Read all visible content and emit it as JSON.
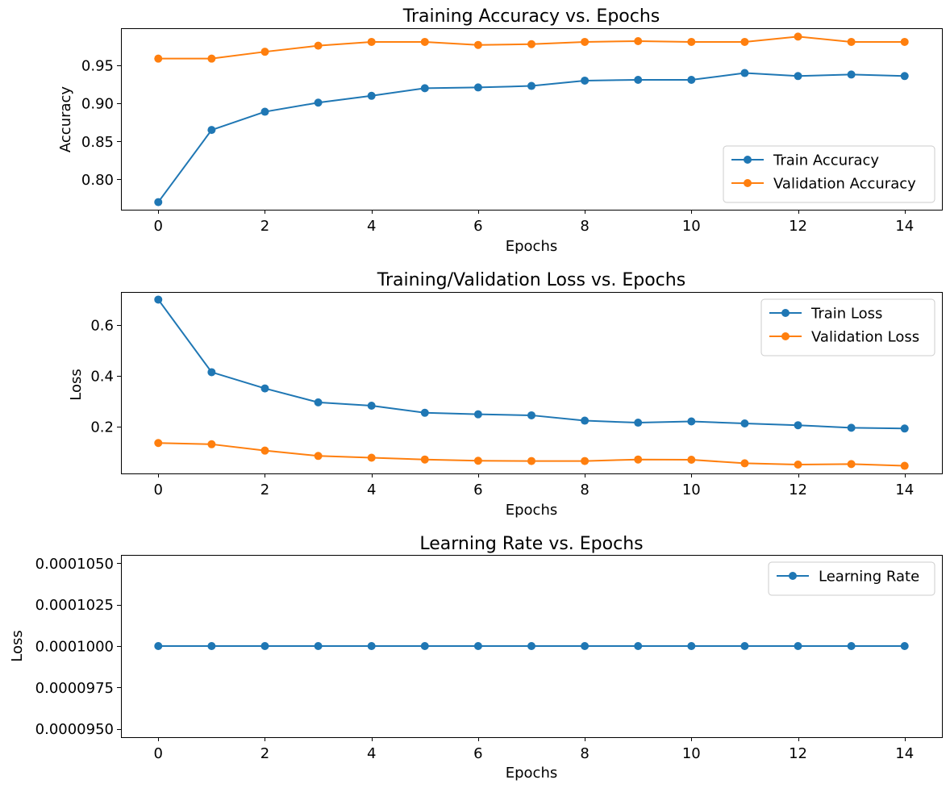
{
  "chart_data": [
    {
      "type": "line",
      "title": "Training Accuracy vs. Epochs",
      "xlabel": "Epochs",
      "ylabel": "Accuracy",
      "x": [
        0,
        1,
        2,
        3,
        4,
        5,
        6,
        7,
        8,
        9,
        10,
        11,
        12,
        13,
        14
      ],
      "xlim": [
        -0.7,
        14.7
      ],
      "ylim": [
        0.76,
        0.999
      ],
      "xticks": [
        0,
        2,
        4,
        6,
        8,
        10,
        12,
        14
      ],
      "xtick_labels": [
        "0",
        "2",
        "4",
        "6",
        "8",
        "10",
        "12",
        "14"
      ],
      "yticks": [
        0.8,
        0.85,
        0.9,
        0.95
      ],
      "ytick_labels": [
        "0.80",
        "0.85",
        "0.90",
        "0.95"
      ],
      "grid": false,
      "legend_position": "lower-right",
      "series": [
        {
          "name": "Train Accuracy",
          "color": "#1f77b4",
          "marker": "circle",
          "values": [
            0.77,
            0.865,
            0.889,
            0.901,
            0.91,
            0.92,
            0.921,
            0.923,
            0.93,
            0.931,
            0.931,
            0.94,
            0.936,
            0.938,
            0.936
          ]
        },
        {
          "name": "Validation Accuracy",
          "color": "#ff7f0e",
          "marker": "circle",
          "values": [
            0.959,
            0.959,
            0.968,
            0.976,
            0.981,
            0.981,
            0.977,
            0.978,
            0.981,
            0.982,
            0.981,
            0.981,
            0.988,
            0.981,
            0.981
          ]
        }
      ]
    },
    {
      "type": "line",
      "title": "Training/Validation Loss vs. Epochs",
      "xlabel": "Epochs",
      "ylabel": "Loss",
      "x": [
        0,
        1,
        2,
        3,
        4,
        5,
        6,
        7,
        8,
        9,
        10,
        11,
        12,
        13,
        14
      ],
      "xlim": [
        -0.7,
        14.7
      ],
      "ylim": [
        0.015,
        0.73
      ],
      "xticks": [
        0,
        2,
        4,
        6,
        8,
        10,
        12,
        14
      ],
      "xtick_labels": [
        "0",
        "2",
        "4",
        "6",
        "8",
        "10",
        "12",
        "14"
      ],
      "yticks": [
        0.2,
        0.4,
        0.6
      ],
      "ytick_labels": [
        "0.2",
        "0.4",
        "0.6"
      ],
      "grid": false,
      "legend_position": "upper-right",
      "series": [
        {
          "name": "Train Loss",
          "color": "#1f77b4",
          "marker": "circle",
          "values": [
            0.7,
            0.414,
            0.35,
            0.295,
            0.282,
            0.254,
            0.248,
            0.244,
            0.223,
            0.215,
            0.22,
            0.212,
            0.205,
            0.195,
            0.192
          ]
        },
        {
          "name": "Validation Loss",
          "color": "#ff7f0e",
          "marker": "circle",
          "values": [
            0.135,
            0.13,
            0.105,
            0.084,
            0.077,
            0.07,
            0.065,
            0.064,
            0.064,
            0.07,
            0.069,
            0.055,
            0.05,
            0.052,
            0.045
          ]
        }
      ]
    },
    {
      "type": "line",
      "title": "Learning Rate vs. Epochs",
      "xlabel": "Epochs",
      "ylabel": "Loss",
      "x": [
        0,
        1,
        2,
        3,
        4,
        5,
        6,
        7,
        8,
        9,
        10,
        11,
        12,
        13,
        14
      ],
      "xlim": [
        -0.7,
        14.7
      ],
      "ylim": [
        9.45e-05,
        0.0001055
      ],
      "xticks": [
        0,
        2,
        4,
        6,
        8,
        10,
        12,
        14
      ],
      "xtick_labels": [
        "0",
        "2",
        "4",
        "6",
        "8",
        "10",
        "12",
        "14"
      ],
      "yticks": [
        9.5e-05,
        9.75e-05,
        0.0001,
        0.0001025,
        0.000105
      ],
      "ytick_labels": [
        "0.0000950",
        "0.0000975",
        "0.0001000",
        "0.0001025",
        "0.0001050"
      ],
      "grid": false,
      "legend_position": "upper-right",
      "series": [
        {
          "name": "Learning Rate",
          "color": "#1f77b4",
          "marker": "circle",
          "values": [
            0.0001,
            0.0001,
            0.0001,
            0.0001,
            0.0001,
            0.0001,
            0.0001,
            0.0001,
            0.0001,
            0.0001,
            0.0001,
            0.0001,
            0.0001,
            0.0001,
            0.0001
          ]
        }
      ]
    }
  ]
}
